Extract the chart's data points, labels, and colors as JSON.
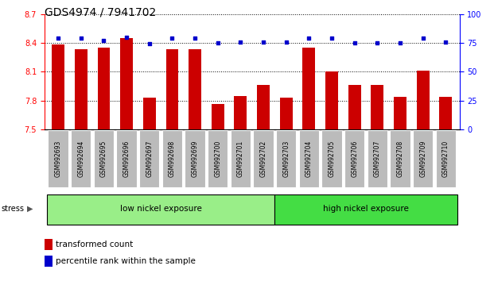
{
  "title": "GDS4974 / 7941702",
  "samples": [
    "GSM992693",
    "GSM992694",
    "GSM992695",
    "GSM992696",
    "GSM992697",
    "GSM992698",
    "GSM992699",
    "GSM992700",
    "GSM992701",
    "GSM992702",
    "GSM992703",
    "GSM992704",
    "GSM992705",
    "GSM992706",
    "GSM992707",
    "GSM992708",
    "GSM992709",
    "GSM992710"
  ],
  "bar_values": [
    8.385,
    8.33,
    8.35,
    8.45,
    7.83,
    8.335,
    8.33,
    7.76,
    7.845,
    7.965,
    7.83,
    8.35,
    8.1,
    7.965,
    7.96,
    7.84,
    8.11,
    7.835
  ],
  "percentile_values": [
    79,
    79,
    77,
    80,
    74,
    79,
    79,
    75,
    76,
    76,
    76,
    79,
    79,
    75,
    75,
    75,
    79,
    76
  ],
  "ylim": [
    7.5,
    8.7
  ],
  "ylim_right": [
    0,
    100
  ],
  "yticks_left": [
    7.5,
    7.8,
    8.1,
    8.4,
    8.7
  ],
  "yticks_right": [
    0,
    25,
    50,
    75,
    100
  ],
  "bar_color": "#cc0000",
  "dot_color": "#0000cc",
  "low_group_count": 10,
  "high_group_count": 8,
  "low_label": "low nickel exposure",
  "high_label": "high nickel exposure",
  "stress_label": "stress",
  "legend_bar_label": "transformed count",
  "legend_dot_label": "percentile rank within the sample",
  "low_group_color": "#99ee88",
  "high_group_color": "#44dd44",
  "xlabel_bg": "#bbbbbb",
  "title_fontsize": 10,
  "tick_fontsize": 7,
  "label_fontsize": 5.5,
  "group_fontsize": 7.5,
  "legend_fontsize": 7.5
}
